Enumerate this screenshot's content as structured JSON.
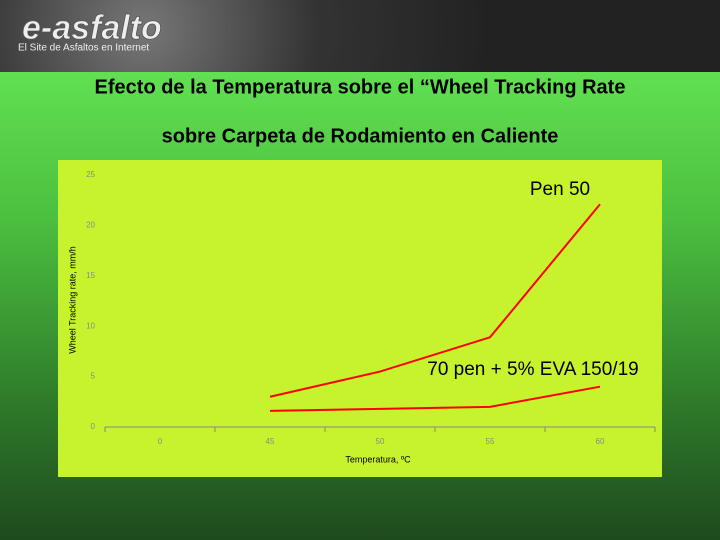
{
  "header": {
    "logo": "e-asfalto",
    "tagline": "El Site de Asfaltos en Internet"
  },
  "chart_data": {
    "type": "line",
    "title": "Efecto de la Temperatura sobre el “Wheel Tracking Rate",
    "subtitle": "sobre Carpeta de Rodamiento en Caliente",
    "x_label": "Temperatura, ºC",
    "y_label": "Wheel Tracking rate, mm/h",
    "categories": [
      "0",
      "45",
      "50",
      "55",
      "60"
    ],
    "series": [
      {
        "name": "Pen 50",
        "color": "#ff0000",
        "values": [
          null,
          3,
          5.5,
          8.9,
          22.1
        ]
      },
      {
        "name": "70 pen + 5% EVA 150/19",
        "color": "#ff0000",
        "values": [
          null,
          1.6,
          1.8,
          2,
          4
        ]
      }
    ],
    "ylim": [
      0,
      25
    ],
    "yticks": [
      0,
      5,
      10,
      15,
      20,
      25
    ],
    "grid": false
  }
}
